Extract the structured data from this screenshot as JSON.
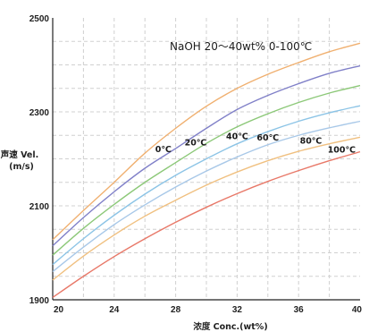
{
  "chart_data": {
    "type": "line",
    "title": "NaOH  20～40wt%  0-100℃",
    "xlabel": "浓度 Conc.(wt%)",
    "ylabel_lines": [
      "声速 Vel.",
      "(m/s)"
    ],
    "xlim": [
      20,
      40
    ],
    "ylim": [
      1900,
      2500
    ],
    "xticks": [
      20,
      24,
      28,
      32,
      36,
      40
    ],
    "yticks": [
      1900,
      2100,
      2300,
      2500
    ],
    "grid": true,
    "x": [
      20,
      22,
      24,
      26,
      28,
      30,
      32,
      34,
      36,
      38,
      40
    ],
    "series": [
      {
        "name": "0℃",
        "color": "#8080c8",
        "values": [
          2015,
          2075,
          2130,
          2180,
          2222,
          2265,
          2305,
          2335,
          2360,
          2382,
          2398
        ]
      },
      {
        "name": "20℃",
        "color": "#8cc878",
        "values": [
          1995,
          2052,
          2103,
          2150,
          2192,
          2233,
          2268,
          2296,
          2320,
          2340,
          2356
        ]
      },
      {
        "name": "40℃",
        "color": "#8cc4e6",
        "values": [
          1975,
          2030,
          2080,
          2125,
          2165,
          2200,
          2232,
          2258,
          2280,
          2298,
          2313
        ]
      },
      {
        "name": "60℃",
        "color": "#a8c8e8",
        "values": [
          1960,
          2012,
          2060,
          2102,
          2140,
          2174,
          2204,
          2230,
          2250,
          2266,
          2280
        ]
      },
      {
        "name": "80℃",
        "color": "#f0c080",
        "values": [
          1942,
          1993,
          2038,
          2078,
          2112,
          2144,
          2172,
          2196,
          2216,
          2232,
          2246
        ]
      },
      {
        "name": "100℃",
        "color": "#e87868",
        "values": [
          1905,
          1950,
          1992,
          2030,
          2065,
          2097,
          2126,
          2152,
          2175,
          2196,
          2215
        ]
      }
    ],
    "series_label_x": [
      27.2,
      29.3,
      32.0,
      34.0,
      36.8,
      38.8
    ],
    "top_curve": {
      "color": "#f0b070",
      "values": [
        2028,
        2090,
        2150,
        2212,
        2265,
        2312,
        2350,
        2380,
        2405,
        2428,
        2446
      ]
    }
  }
}
